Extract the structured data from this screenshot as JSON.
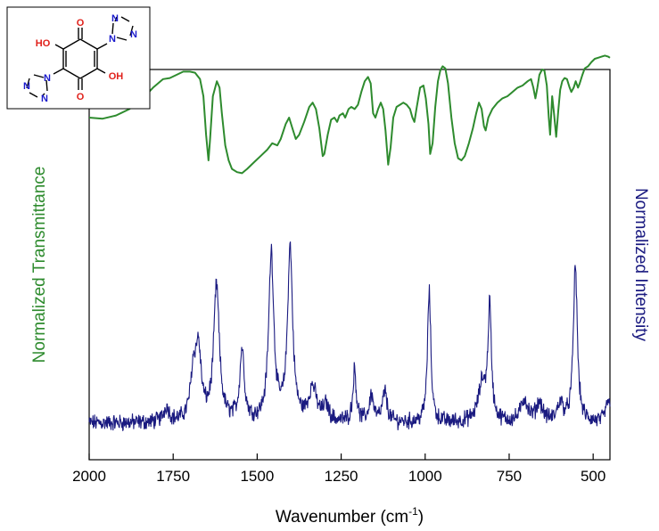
{
  "chart_data": {
    "type": "line",
    "title": "",
    "xlabel": "Wavenumber (cm",
    "xlabel_sup": "-1",
    "xlabel_end": ")",
    "ylabel_left": "Normalized Transmittance",
    "ylabel_right": "Normalized Intensity",
    "xlim": [
      2000,
      450
    ],
    "x_reversed": true,
    "ylim": [
      0,
      1
    ],
    "grid": false,
    "legend": "none",
    "xticks": [
      {
        "value": 2000,
        "label": "2000"
      },
      {
        "value": 1750,
        "label": "1750"
      },
      {
        "value": 1500,
        "label": "1500"
      },
      {
        "value": 1250,
        "label": "1250"
      },
      {
        "value": 1000,
        "label": "1000"
      },
      {
        "value": 750,
        "label": "750"
      },
      {
        "value": 500,
        "label": "500"
      }
    ],
    "colors": {
      "ir": "#2e8b2e",
      "raman": "#1a1a80",
      "left_label": "#2e8b2e",
      "right_label": "#1a1a80",
      "oxygen": "#e0201a",
      "nitrogen": "#1a1acc"
    },
    "series": [
      {
        "key": "ir",
        "points": [
          [
            2000,
            0.7
          ],
          [
            1960,
            0.695
          ],
          [
            1920,
            0.71
          ],
          [
            1880,
            0.74
          ],
          [
            1840,
            0.79
          ],
          [
            1810,
            0.84
          ],
          [
            1780,
            0.88
          ],
          [
            1760,
            0.885
          ],
          [
            1740,
            0.9
          ],
          [
            1720,
            0.915
          ],
          [
            1700,
            0.915
          ],
          [
            1685,
            0.91
          ],
          [
            1670,
            0.88
          ],
          [
            1660,
            0.8
          ],
          [
            1652,
            0.62
          ],
          [
            1645,
            0.5
          ],
          [
            1640,
            0.6
          ],
          [
            1632,
            0.8
          ],
          [
            1620,
            0.87
          ],
          [
            1612,
            0.84
          ],
          [
            1605,
            0.72
          ],
          [
            1595,
            0.57
          ],
          [
            1585,
            0.5
          ],
          [
            1575,
            0.46
          ],
          [
            1560,
            0.445
          ],
          [
            1545,
            0.44
          ],
          [
            1530,
            0.46
          ],
          [
            1510,
            0.49
          ],
          [
            1490,
            0.52
          ],
          [
            1470,
            0.55
          ],
          [
            1455,
            0.58
          ],
          [
            1440,
            0.57
          ],
          [
            1430,
            0.6
          ],
          [
            1415,
            0.67
          ],
          [
            1405,
            0.7
          ],
          [
            1395,
            0.65
          ],
          [
            1385,
            0.6
          ],
          [
            1375,
            0.62
          ],
          [
            1360,
            0.68
          ],
          [
            1345,
            0.75
          ],
          [
            1335,
            0.77
          ],
          [
            1325,
            0.74
          ],
          [
            1315,
            0.65
          ],
          [
            1305,
            0.52
          ],
          [
            1300,
            0.53
          ],
          [
            1290,
            0.62
          ],
          [
            1280,
            0.69
          ],
          [
            1270,
            0.7
          ],
          [
            1262,
            0.68
          ],
          [
            1255,
            0.71
          ],
          [
            1245,
            0.72
          ],
          [
            1238,
            0.7
          ],
          [
            1228,
            0.74
          ],
          [
            1220,
            0.75
          ],
          [
            1210,
            0.74
          ],
          [
            1200,
            0.76
          ],
          [
            1190,
            0.82
          ],
          [
            1180,
            0.87
          ],
          [
            1170,
            0.89
          ],
          [
            1162,
            0.86
          ],
          [
            1155,
            0.72
          ],
          [
            1148,
            0.7
          ],
          [
            1140,
            0.74
          ],
          [
            1132,
            0.77
          ],
          [
            1125,
            0.74
          ],
          [
            1118,
            0.64
          ],
          [
            1110,
            0.48
          ],
          [
            1103,
            0.56
          ],
          [
            1095,
            0.7
          ],
          [
            1085,
            0.75
          ],
          [
            1075,
            0.76
          ],
          [
            1065,
            0.77
          ],
          [
            1055,
            0.76
          ],
          [
            1045,
            0.74
          ],
          [
            1038,
            0.7
          ],
          [
            1032,
            0.68
          ],
          [
            1025,
            0.75
          ],
          [
            1015,
            0.84
          ],
          [
            1005,
            0.85
          ],
          [
            998,
            0.79
          ],
          [
            990,
            0.67
          ],
          [
            985,
            0.53
          ],
          [
            978,
            0.58
          ],
          [
            970,
            0.75
          ],
          [
            962,
            0.87
          ],
          [
            955,
            0.92
          ],
          [
            948,
            0.94
          ],
          [
            940,
            0.93
          ],
          [
            932,
            0.86
          ],
          [
            922,
            0.7
          ],
          [
            912,
            0.58
          ],
          [
            902,
            0.51
          ],
          [
            892,
            0.5
          ],
          [
            882,
            0.52
          ],
          [
            870,
            0.58
          ],
          [
            858,
            0.65
          ],
          [
            848,
            0.72
          ],
          [
            840,
            0.77
          ],
          [
            832,
            0.74
          ],
          [
            825,
            0.66
          ],
          [
            820,
            0.64
          ],
          [
            812,
            0.7
          ],
          [
            800,
            0.74
          ],
          [
            785,
            0.77
          ],
          [
            770,
            0.79
          ],
          [
            755,
            0.8
          ],
          [
            740,
            0.82
          ],
          [
            725,
            0.84
          ],
          [
            710,
            0.85
          ],
          [
            695,
            0.87
          ],
          [
            685,
            0.88
          ],
          [
            678,
            0.84
          ],
          [
            672,
            0.79
          ],
          [
            666,
            0.84
          ],
          [
            660,
            0.9
          ],
          [
            652,
            0.925
          ],
          [
            645,
            0.92
          ],
          [
            638,
            0.85
          ],
          [
            632,
            0.7
          ],
          [
            628,
            0.62
          ],
          [
            622,
            0.8
          ],
          [
            616,
            0.71
          ],
          [
            610,
            0.61
          ],
          [
            604,
            0.73
          ],
          [
            598,
            0.83
          ],
          [
            592,
            0.87
          ],
          [
            585,
            0.885
          ],
          [
            578,
            0.88
          ],
          [
            570,
            0.84
          ],
          [
            565,
            0.82
          ],
          [
            558,
            0.84
          ],
          [
            552,
            0.87
          ],
          [
            545,
            0.84
          ],
          [
            540,
            0.86
          ],
          [
            532,
            0.9
          ],
          [
            525,
            0.93
          ],
          [
            515,
            0.94
          ],
          [
            505,
            0.96
          ],
          [
            495,
            0.975
          ],
          [
            485,
            0.98
          ],
          [
            475,
            0.985
          ],
          [
            465,
            0.99
          ],
          [
            455,
            0.985
          ],
          [
            450,
            0.98
          ]
        ]
      },
      {
        "key": "raman",
        "baseline": 0.05,
        "noise": 0.018,
        "peaks": [
          {
            "x": 1770,
            "h": 0.04,
            "w": 10
          },
          {
            "x": 1690,
            "h": 0.12,
            "w": 10
          },
          {
            "x": 1675,
            "h": 0.18,
            "w": 10
          },
          {
            "x": 1621,
            "h": 0.36,
            "w": 10
          },
          {
            "x": 1545,
            "h": 0.19,
            "w": 8
          },
          {
            "x": 1458,
            "h": 0.45,
            "w": 9
          },
          {
            "x": 1402,
            "h": 0.46,
            "w": 9
          },
          {
            "x": 1335,
            "h": 0.09,
            "w": 14
          },
          {
            "x": 1295,
            "h": 0.04,
            "w": 10
          },
          {
            "x": 1210,
            "h": 0.14,
            "w": 6
          },
          {
            "x": 1160,
            "h": 0.07,
            "w": 8
          },
          {
            "x": 1120,
            "h": 0.08,
            "w": 8
          },
          {
            "x": 988,
            "h": 0.35,
            "w": 6
          },
          {
            "x": 830,
            "h": 0.1,
            "w": 14
          },
          {
            "x": 808,
            "h": 0.3,
            "w": 6
          },
          {
            "x": 705,
            "h": 0.06,
            "w": 12
          },
          {
            "x": 660,
            "h": 0.05,
            "w": 12
          },
          {
            "x": 598,
            "h": 0.05,
            "w": 10
          },
          {
            "x": 553,
            "h": 0.42,
            "w": 7
          },
          {
            "x": 455,
            "h": 0.06,
            "w": 8
          }
        ]
      }
    ]
  },
  "molecule": {
    "atoms": {
      "ho_top": "HO",
      "oh_bottom": "OH",
      "o_top": "O",
      "o_bottom": "O",
      "n_left_top": "N",
      "n_left_mid": "N",
      "n_left_bot": "N",
      "n_right_top": "N",
      "n_right_mid": "N",
      "n_right_bot": "N"
    }
  }
}
